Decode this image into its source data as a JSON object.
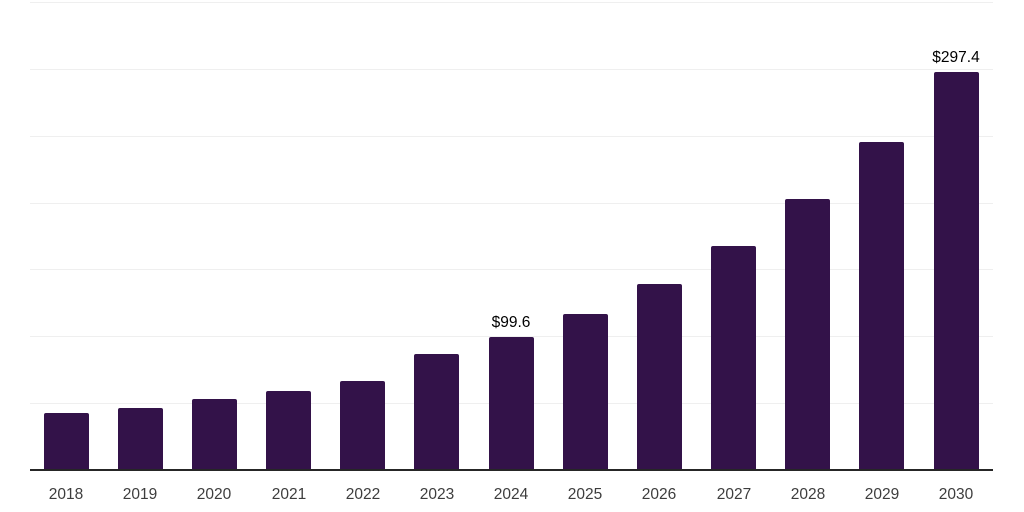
{
  "chart_data": {
    "type": "bar",
    "title": "",
    "xlabel": "",
    "ylabel": "",
    "categories": [
      "2018",
      "2019",
      "2020",
      "2021",
      "2022",
      "2023",
      "2024",
      "2025",
      "2026",
      "2027",
      "2028",
      "2029",
      "2030"
    ],
    "values": [
      42.4,
      46.4,
      52.8,
      58.8,
      66.6,
      87.1,
      99.6,
      117.0,
      139.0,
      167.2,
      202.8,
      245.5,
      297.4
    ],
    "value_labels": [
      "",
      "",
      "",
      "",
      "",
      "",
      "$99.6",
      "",
      "",
      "",
      "",
      "",
      "$297.4"
    ],
    "ylim": [
      0,
      350
    ],
    "grid": true,
    "gridline_values": [
      50,
      100,
      150,
      200,
      250,
      300,
      350
    ],
    "legend_position": "none",
    "colors": {
      "bar": "#331249",
      "axis_line": "#262626",
      "gridline": "#efefef",
      "tick_label": "#3d3d3d",
      "value_label": "#000000",
      "background": "#ffffff"
    }
  }
}
